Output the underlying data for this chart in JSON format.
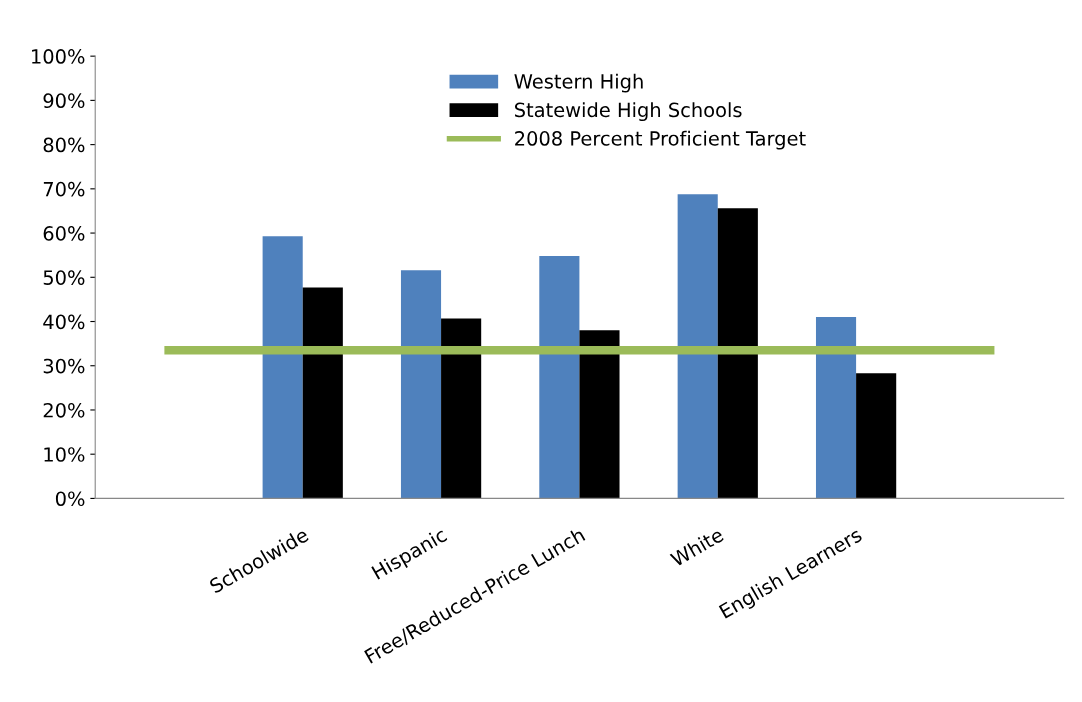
{
  "chart_data": {
    "type": "bar",
    "categories": [
      null,
      "Schoolwide",
      "Hispanic",
      "Free/Reduced-Price Lunch",
      "White",
      "English Learners",
      null
    ],
    "series": [
      {
        "name": "Western High",
        "color": "#4f81bd",
        "values": [
          null,
          59.3,
          51.6,
          54.8,
          68.8,
          41.0,
          null
        ]
      },
      {
        "name": "Statewide High Schools",
        "color": "#000000",
        "values": [
          null,
          47.7,
          40.7,
          38.0,
          65.6,
          28.3,
          null
        ]
      },
      {
        "name": "2008 Percent Proficient Target",
        "type": "line",
        "color": "#9bbb59",
        "values": [
          33.5,
          33.5,
          33.5,
          33.5,
          33.5,
          33.5,
          33.5
        ]
      }
    ],
    "ylim": [
      0,
      100
    ],
    "yticks": [
      {
        "value": 0,
        "label": "0%"
      },
      {
        "value": 10,
        "label": "10%"
      },
      {
        "value": 20,
        "label": "20%"
      },
      {
        "value": 30,
        "label": "30%"
      },
      {
        "value": 40,
        "label": "40%"
      },
      {
        "value": 50,
        "label": "50%"
      },
      {
        "value": 60,
        "label": "60%"
      },
      {
        "value": 70,
        "label": "70%"
      },
      {
        "value": 80,
        "label": "80%"
      },
      {
        "value": 90,
        "label": "90%"
      },
      {
        "value": 100,
        "label": "100%"
      }
    ],
    "grid": false,
    "legend": "top"
  }
}
